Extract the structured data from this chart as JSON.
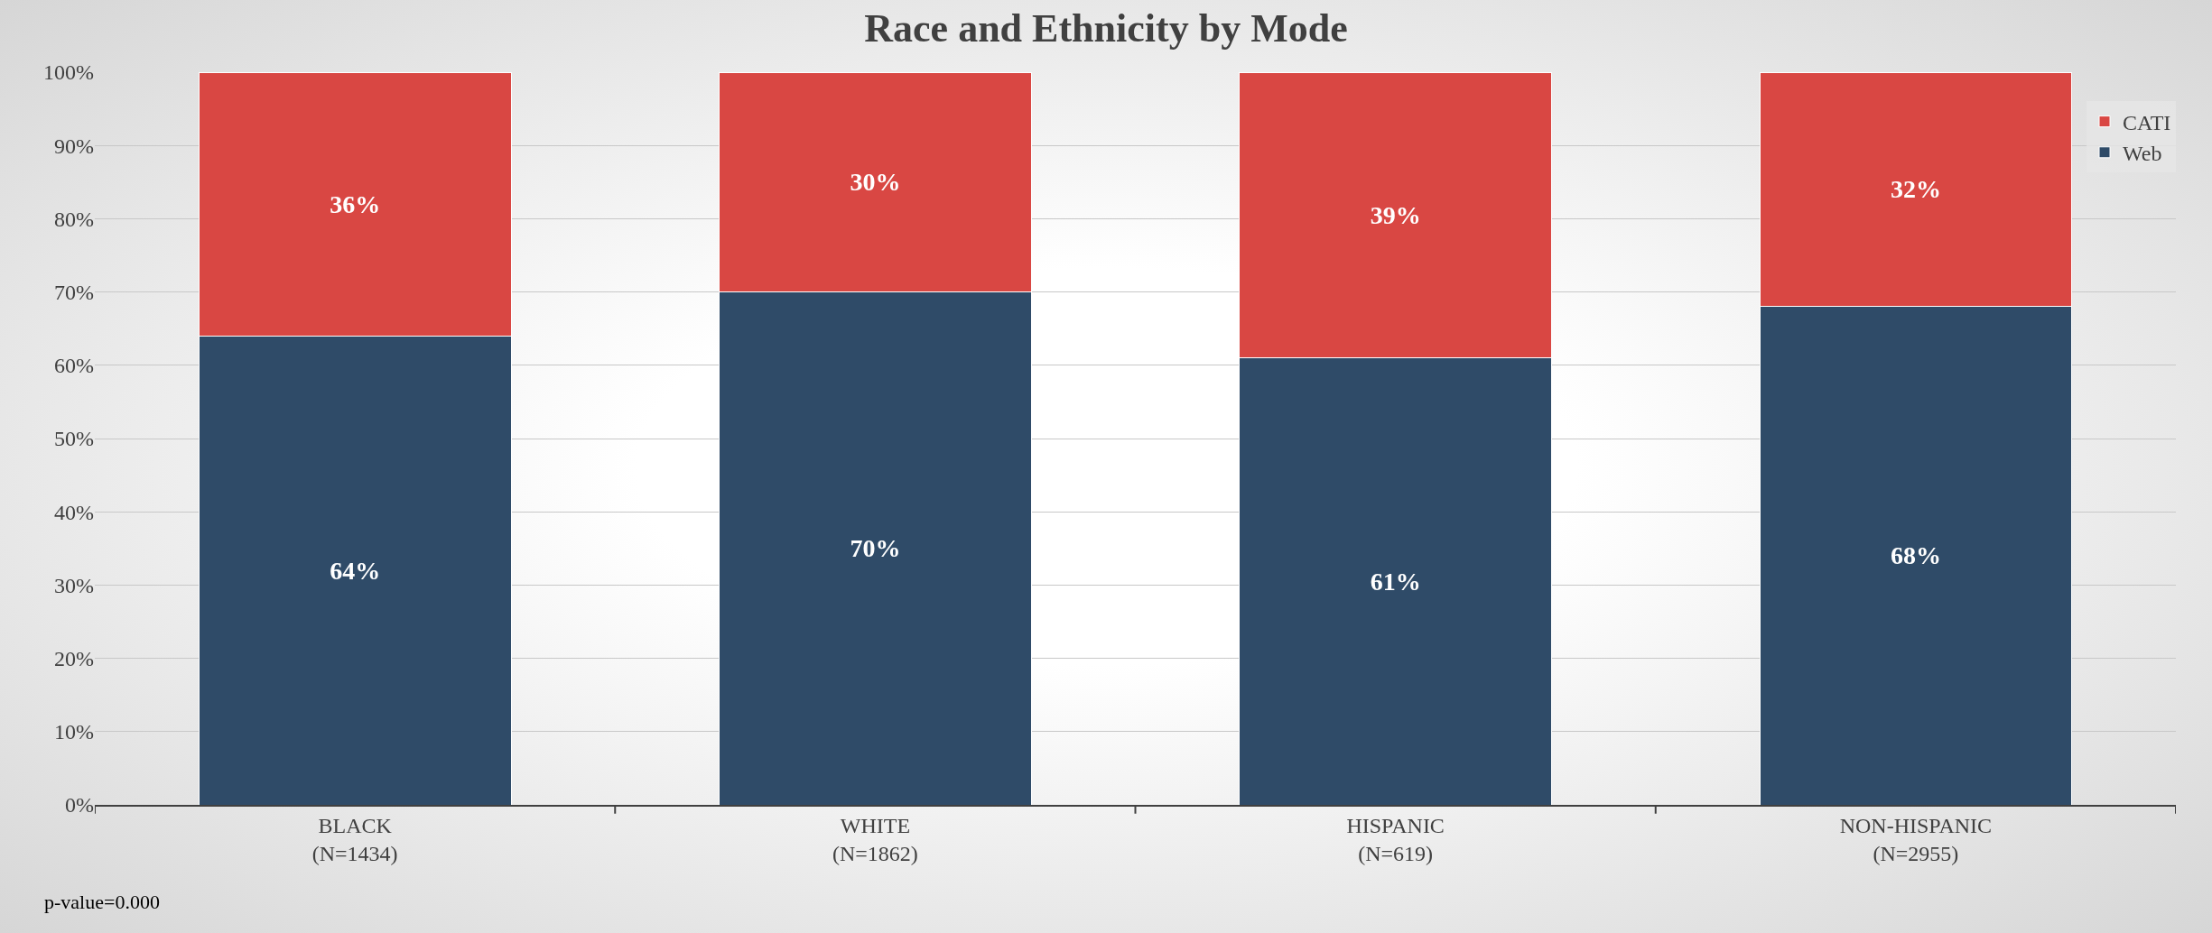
{
  "chart_data": {
    "type": "bar",
    "title": "Race and Ethnicity by Mode",
    "stacked": true,
    "categories": [
      "BLACK\n(N=1434)",
      "WHITE\n(N=1862)",
      "HISPANIC\n(N=619)",
      "NON-HISPANIC\n(N=2955)"
    ],
    "series": [
      {
        "name": "Web",
        "color": "#2f4b68",
        "values": [
          64,
          70,
          61,
          68
        ],
        "value_labels": [
          "64%",
          "70%",
          "61%",
          "68%"
        ]
      },
      {
        "name": "CATI",
        "color": "#d94743",
        "values": [
          36,
          30,
          39,
          32
        ],
        "value_labels": [
          "36%",
          "30%",
          "39%",
          "32%"
        ]
      }
    ],
    "ylim": [
      0,
      100
    ],
    "yticks": [
      {
        "value": 0,
        "label": "0%"
      },
      {
        "value": 10,
        "label": "10%"
      },
      {
        "value": 20,
        "label": "20%"
      },
      {
        "value": 30,
        "label": "30%"
      },
      {
        "value": 40,
        "label": "40%"
      },
      {
        "value": 50,
        "label": "50%"
      },
      {
        "value": 60,
        "label": "60%"
      },
      {
        "value": 70,
        "label": "70%"
      },
      {
        "value": 80,
        "label": "80%"
      },
      {
        "value": 90,
        "label": "90%"
      },
      {
        "value": 100,
        "label": "100%"
      }
    ],
    "grid": "y",
    "legend": "top right",
    "annotations": [
      "p-value=0.000"
    ]
  }
}
